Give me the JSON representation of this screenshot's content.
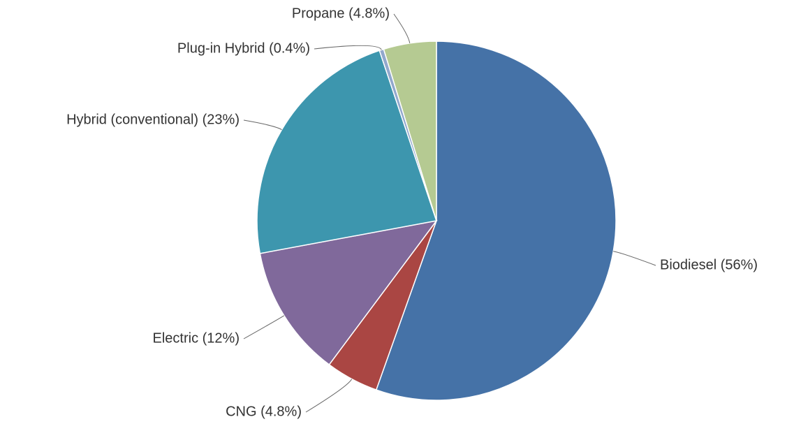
{
  "chart_data": {
    "type": "pie",
    "values": [
      56,
      4.8,
      12,
      23,
      0.4,
      4.8
    ],
    "value_labels": [
      "Biodiesel (56%)",
      "CNG (4.8%)",
      "Electric (12%)",
      "Hybrid (conventional) (23%)",
      "Plug-in Hybrid (0.4%)",
      "Propane (4.8%)"
    ],
    "colors": [
      "#4572a7",
      "#aa4643",
      "#80699b",
      "#3d96ae",
      "#92a8cd",
      "#b5ca92"
    ]
  }
}
